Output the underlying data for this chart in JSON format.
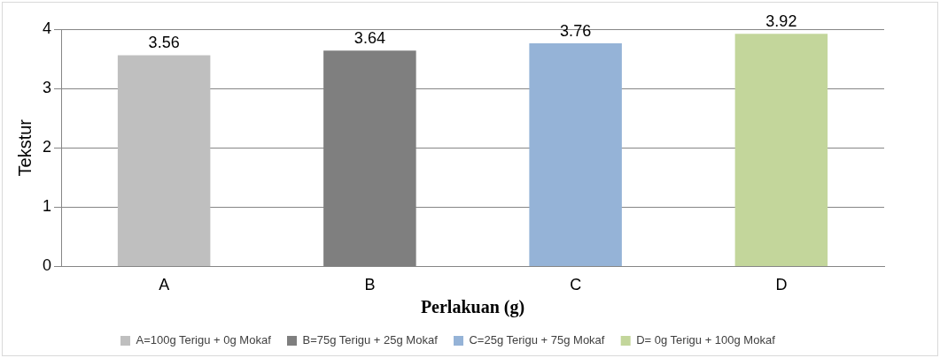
{
  "chart_data": {
    "type": "bar",
    "xlabel": "Perlakuan (g)",
    "ylabel": "Tekstur",
    "categories": [
      "A",
      "B",
      "C",
      "D"
    ],
    "series": [
      {
        "name": "A=100g Terigu + 0g Mokaf",
        "color": "#bfbfbf",
        "values": [
          3.56,
          null,
          null,
          null
        ]
      },
      {
        "name": "B=75g Terigu + 25g Mokaf",
        "color": "#7f7f7f",
        "values": [
          null,
          3.64,
          null,
          null
        ]
      },
      {
        "name": "C=25g Terigu + 75g Mokaf",
        "color": "#95b3d7",
        "values": [
          null,
          null,
          3.76,
          null
        ]
      },
      {
        "name": "D= 0g Terigu + 100g Mokaf",
        "color": "#c3d69b",
        "values": [
          null,
          null,
          null,
          3.92
        ]
      }
    ],
    "ylim": [
      0,
      4
    ],
    "yticks": [
      0,
      1,
      2,
      3,
      4
    ],
    "grid": "y",
    "legend": "bottom",
    "data_labels": true
  }
}
